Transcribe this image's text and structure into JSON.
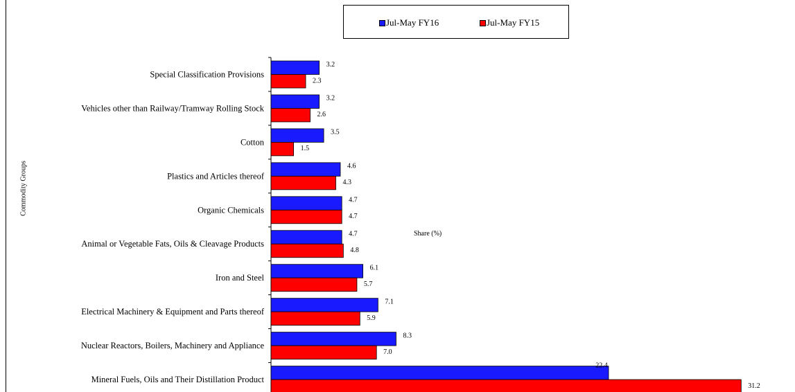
{
  "chart_data": {
    "type": "bar",
    "orientation": "horizontal",
    "categories": [
      "Special Classification Provisions",
      "Vehicles other than Railway/Tramway Rolling Stock",
      "Cotton",
      "Plastics and Articles thereof",
      "Organic Chemicals",
      "Animal or Vegetable Fats, Oils & Cleavage Products",
      "Iron and Steel",
      "Electrical Machinery & Equipment and Parts thereof",
      "Nuclear Reactors, Boilers, Machinery and Appliance",
      "Mineral Fuels, Oils and Their Distillation Product"
    ],
    "series": [
      {
        "name": "Jul-May FY16",
        "color": "#1a1aff",
        "values": [
          3.2,
          3.2,
          3.5,
          4.6,
          4.7,
          4.7,
          6.1,
          7.1,
          8.3,
          22.4
        ],
        "labels": [
          "3.2",
          "3.2",
          "3.5",
          "4.6",
          "4.7",
          "4.7",
          "6.1",
          "7.1",
          "8.3",
          "22.4"
        ]
      },
      {
        "name": "Jul-May FY15",
        "color": "#ff0000",
        "values": [
          2.3,
          2.6,
          1.5,
          4.3,
          4.7,
          4.8,
          5.7,
          5.9,
          7.0,
          31.2
        ],
        "labels": [
          "2.3",
          "2.6",
          "1.5",
          "4.3",
          "4.7",
          "4.8",
          "5.7",
          "5.9",
          "7.0",
          "31.2"
        ]
      }
    ],
    "xlabel": "Share (%)",
    "ylabel": "Commodity Groups",
    "xlim": [
      0,
      31.6
    ],
    "legend_position": "top-center",
    "grid": false
  }
}
